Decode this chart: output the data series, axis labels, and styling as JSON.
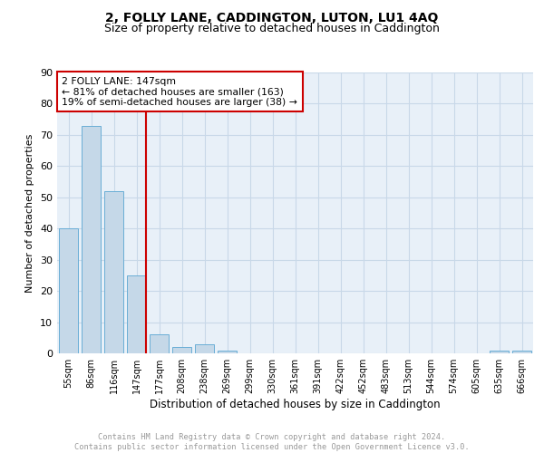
{
  "title": "2, FOLLY LANE, CADDINGTON, LUTON, LU1 4AQ",
  "subtitle": "Size of property relative to detached houses in Caddington",
  "xlabel": "Distribution of detached houses by size in Caddington",
  "ylabel": "Number of detached properties",
  "categories": [
    "55sqm",
    "86sqm",
    "116sqm",
    "147sqm",
    "177sqm",
    "208sqm",
    "238sqm",
    "269sqm",
    "299sqm",
    "330sqm",
    "361sqm",
    "391sqm",
    "422sqm",
    "452sqm",
    "483sqm",
    "513sqm",
    "544sqm",
    "574sqm",
    "605sqm",
    "635sqm",
    "666sqm"
  ],
  "values": [
    40,
    73,
    52,
    25,
    6,
    2,
    3,
    1,
    0,
    0,
    0,
    0,
    0,
    0,
    0,
    0,
    0,
    0,
    0,
    1,
    1
  ],
  "bar_color": "#c5d8e8",
  "bar_edge_color": "#6aaed6",
  "vline_color": "#cc0000",
  "annotation_text": "2 FOLLY LANE: 147sqm\n← 81% of detached houses are smaller (163)\n19% of semi-detached houses are larger (38) →",
  "annotation_box_color": "#cc0000",
  "ylim": [
    0,
    90
  ],
  "yticks": [
    0,
    10,
    20,
    30,
    40,
    50,
    60,
    70,
    80,
    90
  ],
  "grid_color": "#c8d8e8",
  "bg_color": "#e8f0f8",
  "footer": "Contains HM Land Registry data © Crown copyright and database right 2024.\nContains public sector information licensed under the Open Government Licence v3.0.",
  "title_fontsize": 10,
  "subtitle_fontsize": 9
}
